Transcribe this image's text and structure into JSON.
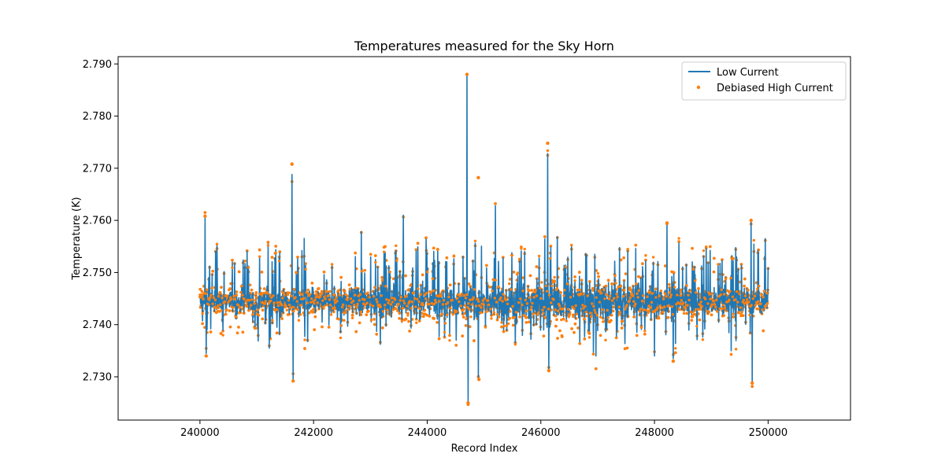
{
  "chart_data": {
    "type": "line",
    "title": "Temperatures measured for the Sky Horn",
    "xlabel": "Record Index",
    "ylabel": "Temperature (K)",
    "xlim": [
      238560,
      251450
    ],
    "ylim": [
      2.7217,
      2.7914
    ],
    "x_ticks": [
      240000,
      242000,
      244000,
      246000,
      248000,
      250000
    ],
    "x_tick_labels": [
      "240000",
      "242000",
      "244000",
      "246000",
      "248000",
      "250000"
    ],
    "y_ticks": [
      2.73,
      2.74,
      2.75,
      2.76,
      2.77,
      2.78,
      2.79
    ],
    "y_tick_labels": [
      "2.730",
      "2.740",
      "2.750",
      "2.760",
      "2.770",
      "2.780",
      "2.790"
    ],
    "legend": {
      "position": "top-right",
      "entries": [
        {
          "label": "Low Current",
          "kind": "line",
          "color": "#1f77b4"
        },
        {
          "label": "Debiased High Current",
          "kind": "scatter",
          "color": "#ff7f0e"
        }
      ]
    },
    "series": [
      {
        "name": "Low Current",
        "color": "#1f77b4",
        "x_range": [
          240000,
          250000
        ],
        "baseline": 2.7445,
        "spikes": [
          {
            "x": 240090,
            "value": 2.7605
          },
          {
            "x": 240110,
            "value": 2.7345
          },
          {
            "x": 240300,
            "value": 2.7555
          },
          {
            "x": 241200,
            "value": 2.7555
          },
          {
            "x": 241220,
            "value": 2.7355
          },
          {
            "x": 241620,
            "value": 2.7688
          },
          {
            "x": 241640,
            "value": 2.7295
          },
          {
            "x": 242840,
            "value": 2.7578
          },
          {
            "x": 243580,
            "value": 2.761
          },
          {
            "x": 244700,
            "value": 2.7878
          },
          {
            "x": 244720,
            "value": 2.7252
          },
          {
            "x": 244900,
            "value": 2.7295
          },
          {
            "x": 245200,
            "value": 2.7628
          },
          {
            "x": 246120,
            "value": 2.7728
          },
          {
            "x": 246140,
            "value": 2.7315
          },
          {
            "x": 246950,
            "value": 2.7535
          },
          {
            "x": 246970,
            "value": 2.734
          },
          {
            "x": 248000,
            "value": 2.734
          },
          {
            "x": 248220,
            "value": 2.7595
          },
          {
            "x": 248330,
            "value": 2.7335
          },
          {
            "x": 249350,
            "value": 2.735
          },
          {
            "x": 249700,
            "value": 2.76
          },
          {
            "x": 249720,
            "value": 2.729
          },
          {
            "x": 249950,
            "value": 2.7565
          }
        ]
      },
      {
        "name": "Debiased High Current",
        "color": "#ff7f0e",
        "x_range": [
          240000,
          250000
        ],
        "baseline": 2.7445,
        "outliers": [
          {
            "x": 240090,
            "value": 2.7608
          },
          {
            "x": 240110,
            "value": 2.734
          },
          {
            "x": 241620,
            "value": 2.7708
          },
          {
            "x": 241640,
            "value": 2.7292
          },
          {
            "x": 244700,
            "value": 2.788
          },
          {
            "x": 244720,
            "value": 2.725
          },
          {
            "x": 244900,
            "value": 2.7682
          },
          {
            "x": 244910,
            "value": 2.7295
          },
          {
            "x": 246120,
            "value": 2.7748
          },
          {
            "x": 246140,
            "value": 2.7312
          },
          {
            "x": 248220,
            "value": 2.7595
          },
          {
            "x": 248330,
            "value": 2.733
          },
          {
            "x": 249700,
            "value": 2.76
          },
          {
            "x": 249720,
            "value": 2.7288
          }
        ]
      }
    ]
  }
}
